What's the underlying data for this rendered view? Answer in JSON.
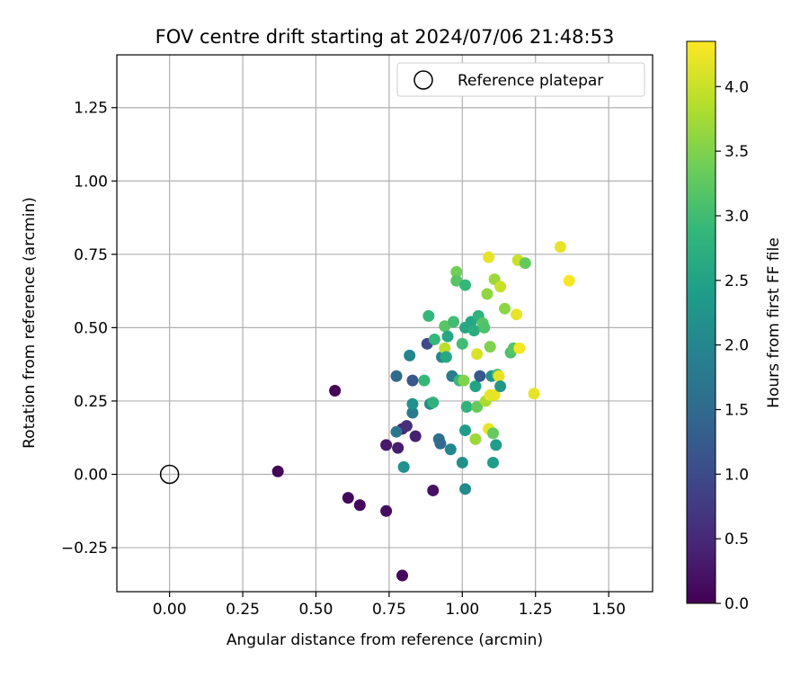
{
  "chart_data": {
    "type": "scatter",
    "title": "FOV centre drift starting at 2024/07/06 21:48:53",
    "xlabel": "Angular distance from reference (arcmin)",
    "ylabel": "Rotation from reference (arcmin)",
    "xlim": [
      -0.18,
      1.65
    ],
    "ylim": [
      -0.4,
      1.43
    ],
    "xticks": [
      "0.00",
      "0.25",
      "0.50",
      "0.75",
      "1.00",
      "1.25",
      "1.50"
    ],
    "xtick_values": [
      0,
      0.25,
      0.5,
      0.75,
      1.0,
      1.25,
      1.5
    ],
    "yticks": [
      "−0.25",
      "0.00",
      "0.25",
      "0.50",
      "0.75",
      "1.00",
      "1.25"
    ],
    "ytick_values": [
      -0.25,
      0,
      0.25,
      0.5,
      0.75,
      1.0,
      1.25
    ],
    "grid": true,
    "colormap": "viridis",
    "colormap_stops": [
      "#440154",
      "#482878",
      "#3e4989",
      "#31688e",
      "#26828e",
      "#1f9e89",
      "#35b779",
      "#6ece58",
      "#b5de2b",
      "#fde725"
    ],
    "colorbar": {
      "label": "Hours from first FF file",
      "range": [
        0,
        4.35
      ],
      "ticks": [
        "0.0",
        "0.5",
        "1.0",
        "1.5",
        "2.0",
        "2.5",
        "3.0",
        "3.5",
        "4.0"
      ],
      "tick_values": [
        0,
        0.5,
        1.0,
        1.5,
        2.0,
        2.5,
        3.0,
        3.5,
        4.0
      ]
    },
    "legend": {
      "placement": "top-right",
      "entries": [
        {
          "label": "Reference platepar",
          "marker": "open-circle"
        }
      ]
    },
    "reference_point": {
      "x": 0,
      "y": 0
    },
    "points": [
      {
        "x": 0.37,
        "y": 0.01,
        "c": 0.05
      },
      {
        "x": 0.565,
        "y": 0.285,
        "c": 0.05
      },
      {
        "x": 0.61,
        "y": -0.08,
        "c": 0.1
      },
      {
        "x": 0.65,
        "y": -0.105,
        "c": 0.1
      },
      {
        "x": 0.74,
        "y": -0.125,
        "c": 0.15
      },
      {
        "x": 0.795,
        "y": -0.345,
        "c": 0.1
      },
      {
        "x": 0.74,
        "y": 0.1,
        "c": 0.3
      },
      {
        "x": 0.78,
        "y": 0.09,
        "c": 0.35
      },
      {
        "x": 0.795,
        "y": 0.155,
        "c": 0.5
      },
      {
        "x": 0.81,
        "y": 0.165,
        "c": 0.6
      },
      {
        "x": 0.84,
        "y": 0.13,
        "c": 0.4
      },
      {
        "x": 0.9,
        "y": -0.055,
        "c": 0.2
      },
      {
        "x": 0.88,
        "y": 0.445,
        "c": 1.0
      },
      {
        "x": 0.83,
        "y": 0.32,
        "c": 1.2
      },
      {
        "x": 0.775,
        "y": 0.335,
        "c": 1.5
      },
      {
        "x": 0.775,
        "y": 0.145,
        "c": 1.7
      },
      {
        "x": 0.8,
        "y": 0.025,
        "c": 2.2
      },
      {
        "x": 0.82,
        "y": 0.405,
        "c": 2.0
      },
      {
        "x": 0.83,
        "y": 0.21,
        "c": 1.8
      },
      {
        "x": 0.83,
        "y": 0.24,
        "c": 2.2
      },
      {
        "x": 0.87,
        "y": 0.32,
        "c": 2.9
      },
      {
        "x": 0.885,
        "y": 0.54,
        "c": 2.9
      },
      {
        "x": 0.89,
        "y": 0.24,
        "c": 2.1
      },
      {
        "x": 0.9,
        "y": 0.245,
        "c": 2.8
      },
      {
        "x": 0.905,
        "y": 0.46,
        "c": 2.9
      },
      {
        "x": 0.92,
        "y": 0.12,
        "c": 1.6
      },
      {
        "x": 0.925,
        "y": 0.105,
        "c": 1.5
      },
      {
        "x": 0.93,
        "y": 0.4,
        "c": 2.0
      },
      {
        "x": 0.94,
        "y": 0.505,
        "c": 3.2
      },
      {
        "x": 0.94,
        "y": 0.43,
        "c": 3.9
      },
      {
        "x": 0.945,
        "y": 0.4,
        "c": 2.6
      },
      {
        "x": 0.95,
        "y": 0.47,
        "c": 2.6
      },
      {
        "x": 0.96,
        "y": 0.085,
        "c": 2.0
      },
      {
        "x": 0.965,
        "y": 0.335,
        "c": 1.8
      },
      {
        "x": 0.97,
        "y": 0.52,
        "c": 3.0
      },
      {
        "x": 0.98,
        "y": 0.69,
        "c": 3.4
      },
      {
        "x": 0.98,
        "y": 0.66,
        "c": 3.2
      },
      {
        "x": 0.99,
        "y": 0.32,
        "c": 2.9
      },
      {
        "x": 1.0,
        "y": 0.445,
        "c": 3.0
      },
      {
        "x": 1.0,
        "y": 0.04,
        "c": 2.2
      },
      {
        "x": 1.005,
        "y": 0.32,
        "c": 3.5
      },
      {
        "x": 1.01,
        "y": -0.05,
        "c": 2.1
      },
      {
        "x": 1.01,
        "y": 0.645,
        "c": 2.9
      },
      {
        "x": 1.01,
        "y": 0.5,
        "c": 2.6
      },
      {
        "x": 1.01,
        "y": 0.15,
        "c": 2.4
      },
      {
        "x": 1.015,
        "y": 0.23,
        "c": 2.8
      },
      {
        "x": 1.03,
        "y": 0.52,
        "c": 2.6
      },
      {
        "x": 1.04,
        "y": 0.49,
        "c": 2.7
      },
      {
        "x": 1.045,
        "y": 0.12,
        "c": 3.7
      },
      {
        "x": 1.045,
        "y": 0.3,
        "c": 2.5
      },
      {
        "x": 1.05,
        "y": 0.41,
        "c": 4.1
      },
      {
        "x": 1.05,
        "y": 0.23,
        "c": 3.3
      },
      {
        "x": 1.055,
        "y": 0.54,
        "c": 2.8
      },
      {
        "x": 1.06,
        "y": 0.335,
        "c": 1.2
      },
      {
        "x": 1.07,
        "y": 0.515,
        "c": 3.2
      },
      {
        "x": 1.075,
        "y": 0.5,
        "c": 3.1
      },
      {
        "x": 1.08,
        "y": 0.25,
        "c": 3.8
      },
      {
        "x": 1.085,
        "y": 0.615,
        "c": 3.6
      },
      {
        "x": 1.09,
        "y": 0.74,
        "c": 4.2
      },
      {
        "x": 1.09,
        "y": 0.155,
        "c": 4.2
      },
      {
        "x": 1.095,
        "y": 0.435,
        "c": 3.5
      },
      {
        "x": 1.095,
        "y": 0.27,
        "c": 4.2
      },
      {
        "x": 1.1,
        "y": 0.335,
        "c": 2.2
      },
      {
        "x": 1.105,
        "y": 0.14,
        "c": 3.3
      },
      {
        "x": 1.105,
        "y": 0.04,
        "c": 2.4
      },
      {
        "x": 1.11,
        "y": 0.665,
        "c": 3.7
      },
      {
        "x": 1.11,
        "y": 0.27,
        "c": 4.2
      },
      {
        "x": 1.115,
        "y": 0.1,
        "c": 2.4
      },
      {
        "x": 1.12,
        "y": 0.34,
        "c": 3.0
      },
      {
        "x": 1.125,
        "y": 0.335,
        "c": 4.2
      },
      {
        "x": 1.13,
        "y": 0.64,
        "c": 4.0
      },
      {
        "x": 1.13,
        "y": 0.3,
        "c": 2.3
      },
      {
        "x": 1.145,
        "y": 0.565,
        "c": 3.6
      },
      {
        "x": 1.165,
        "y": 0.415,
        "c": 3.1
      },
      {
        "x": 1.175,
        "y": 0.43,
        "c": 3.2
      },
      {
        "x": 1.185,
        "y": 0.545,
        "c": 4.2
      },
      {
        "x": 1.19,
        "y": 0.73,
        "c": 4.0
      },
      {
        "x": 1.195,
        "y": 0.43,
        "c": 4.3
      },
      {
        "x": 1.215,
        "y": 0.72,
        "c": 3.3
      },
      {
        "x": 1.245,
        "y": 0.275,
        "c": 4.2
      },
      {
        "x": 1.335,
        "y": 0.775,
        "c": 4.2
      },
      {
        "x": 1.365,
        "y": 0.66,
        "c": 4.3
      }
    ]
  }
}
